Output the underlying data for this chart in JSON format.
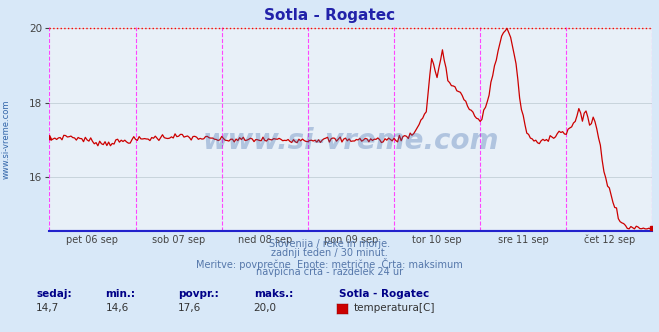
{
  "title": "Sotla - Rogatec",
  "bg_color": "#d8e8f8",
  "plot_bg_color": "#e8f0f8",
  "line_color": "#cc0000",
  "max_line_color": "#ff0000",
  "grid_color": "#c8d4dc",
  "vline_color": "#ff44ff",
  "hline_color": "#2222cc",
  "ylim_min": 14.6,
  "ylim_max": 20.0,
  "ylim_display_min": 14.55,
  "ylim_display_max": 20.05,
  "yticks": [
    16,
    18,
    20
  ],
  "xlabel_items": [
    "pet 06 sep",
    "sob 07 sep",
    "ned 08 sep",
    "pon 09 sep",
    "tor 10 sep",
    "sre 11 sep",
    "čet 12 sep"
  ],
  "watermark": "www.si-vreme.com",
  "watermark_color": "#3060a8",
  "subtitle1": "Slovenija / reke in morje.",
  "subtitle2": "zadnji teden / 30 minut.",
  "subtitle3": "Meritve: povprečne  Enote: metrične  Črta: maksimum",
  "subtitle4": "navpična črta - razdelek 24 ur",
  "stat_label1": "sedaj:",
  "stat_label2": "min.:",
  "stat_label3": "povpr.:",
  "stat_label4": "maks.:",
  "stat_val1": "14,7",
  "stat_val2": "14,6",
  "stat_val3": "17,6",
  "stat_val4": "20,0",
  "legend_station": "Sotla - Rogatec",
  "legend_label": "temperatura[C]",
  "legend_color": "#cc0000",
  "n_points": 337,
  "pts_per_day": 48,
  "title_color": "#2222aa",
  "tick_color": "#444444",
  "subtitle_color": "#5577aa",
  "stat_bold_color": "#000088",
  "stat_val_color": "#333333",
  "ylabel_sideways": "www.si-vreme.com",
  "ylabel_color": "#3366aa"
}
